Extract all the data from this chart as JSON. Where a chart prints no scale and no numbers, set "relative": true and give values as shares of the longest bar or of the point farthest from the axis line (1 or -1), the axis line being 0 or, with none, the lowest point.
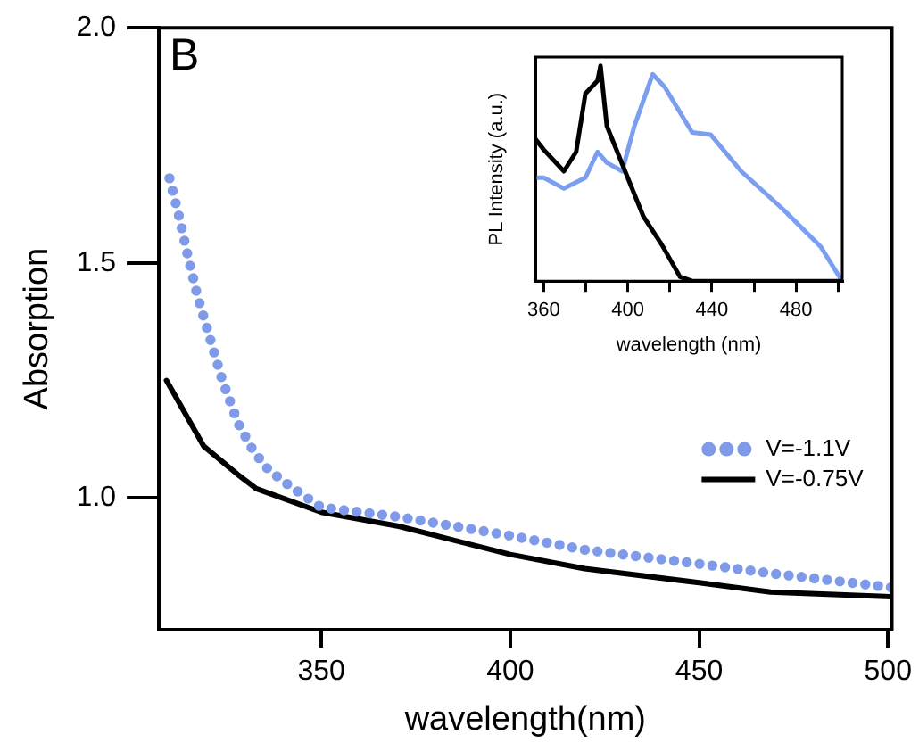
{
  "chart_data": [
    {
      "type": "line",
      "annotations": [
        "B"
      ],
      "xlabel": "wavelength(nm)",
      "ylabel": "Absorption",
      "xlim": [
        307,
        501
      ],
      "xticks": [
        350,
        400,
        450,
        500
      ],
      "ylim": [
        0.72,
        2.0
      ],
      "yticks": [
        {
          "value": 1.0,
          "label": "1.0"
        },
        {
          "value": 1.5,
          "label": "1.5"
        },
        {
          "value": 2.0,
          "label": "2.0"
        }
      ],
      "grid": false,
      "legend": "right",
      "series": [
        {
          "name": "V=-1.1V",
          "line_style": "dotted",
          "color": "#7f9ae8",
          "x": [
            309.8,
            312.3,
            314.8,
            317.2,
            320.5,
            323.8,
            327.9,
            332,
            336,
            342.6,
            350,
            370.5,
            400,
            419.7,
            450,
            468.9,
            500.8
          ],
          "values": [
            1.68,
            1.6,
            1.51,
            1.43,
            1.34,
            1.25,
            1.16,
            1.1,
            1.06,
            1.02,
            0.98,
            0.96,
            0.92,
            0.89,
            0.86,
            0.84,
            0.81
          ]
        },
        {
          "name": "V=-0.75V",
          "line_style": "solid",
          "color": "#000000",
          "x": [
            309,
            318.9,
            327.9,
            332.8,
            350,
            370.5,
            400,
            419.7,
            450,
            468.9,
            500.8
          ],
          "values": [
            1.25,
            1.11,
            1.05,
            1.02,
            0.97,
            0.94,
            0.88,
            0.85,
            0.82,
            0.8,
            0.79
          ]
        }
      ]
    },
    {
      "type": "line",
      "relative": true,
      "xlabel": "wavelength (nm)",
      "ylabel": "PL Intensity (a.u.)",
      "xlim": [
        356,
        502
      ],
      "xticks": [
        360,
        {
          "value": 380,
          "label": null
        },
        400,
        {
          "value": 420,
          "label": null
        },
        440,
        {
          "value": 460,
          "label": null
        },
        480,
        {
          "value": 500,
          "label": null
        }
      ],
      "grid": false,
      "legend": false,
      "series": [
        {
          "color": "#000000",
          "x": [
            356,
            360,
            369.6,
            375.4,
            379.8,
            385.6,
            387,
            390,
            398.7,
            407.4,
            416.1,
            424.8,
            430.6,
            502
          ],
          "values": [
            0.66,
            0.61,
            0.51,
            0.6,
            0.87,
            0.93,
            1.0,
            0.72,
            0.51,
            0.3,
            0.17,
            0.02,
            0,
            0
          ]
        },
        {
          "color": "#7c9ef0",
          "x": [
            356,
            360,
            369.6,
            379.8,
            385.6,
            390,
            397.3,
            403.1,
            411.8,
            417.6,
            430.6,
            439.4,
            453.9,
            474.2,
            491.7,
            501.9
          ],
          "values": [
            0.48,
            0.48,
            0.43,
            0.48,
            0.6,
            0.55,
            0.51,
            0.72,
            0.96,
            0.9,
            0.69,
            0.68,
            0.51,
            0.33,
            0.16,
            0
          ]
        }
      ]
    }
  ]
}
